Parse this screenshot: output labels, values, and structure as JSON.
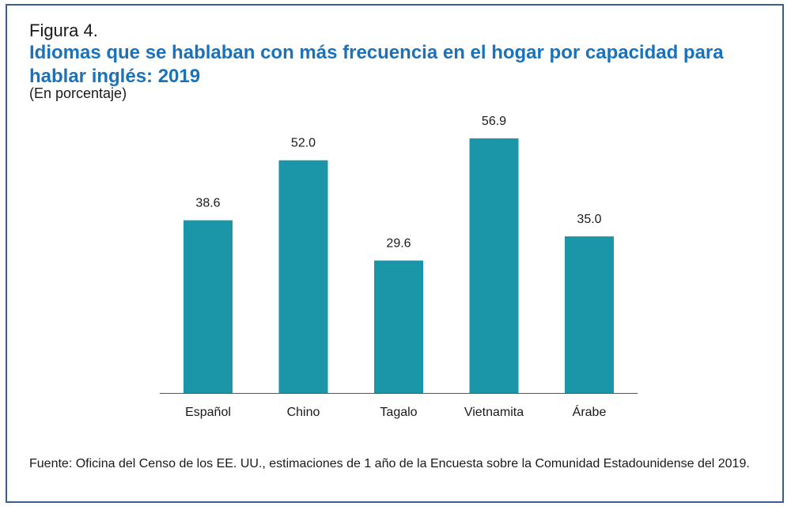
{
  "figure_label": "Figura 4.",
  "title": "Idiomas que se hablaban con más frecuencia en el hogar por capacidad para hablar inglés: 2019",
  "subtitle": "(En porcentaje)",
  "source": "Fuente: Oficina del Censo de los EE. UU., estimaciones de 1 año de la Encuesta sobre la Comunidad Estadounidense del 2019.",
  "colors": {
    "bar": "#1a96a8",
    "title": "#1a73ba",
    "frame": "#3a5f8a",
    "axis": "#555555"
  },
  "chart_data": {
    "type": "bar",
    "title": "Idiomas que se hablaban con más frecuencia en el hogar por capacidad para hablar inglés: 2019",
    "ylabel": "(En porcentaje)",
    "xlabel": "",
    "categories": [
      "Español",
      "Chino",
      "Tagalo",
      "Vietnamita",
      "Árabe"
    ],
    "values": [
      38.6,
      52.0,
      29.6,
      56.9,
      35.0
    ],
    "value_labels": [
      "38.6",
      "52.0",
      "29.6",
      "56.9",
      "35.0"
    ],
    "ylim": [
      0,
      56.9
    ],
    "grid": false,
    "legend": "none"
  }
}
